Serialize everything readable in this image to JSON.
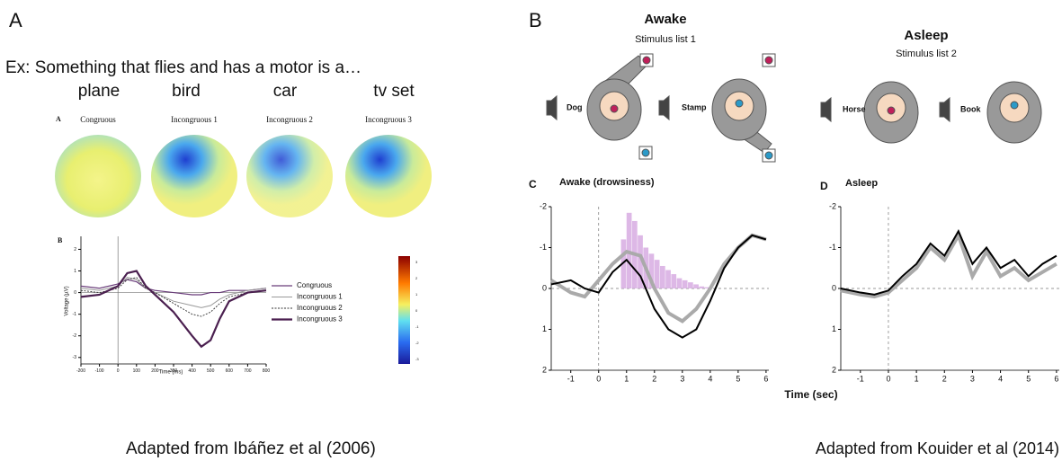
{
  "panel_a": {
    "label": "A",
    "example": "Ex:  Something that flies and has a motor is a…",
    "words": [
      "plane",
      "bird",
      "car",
      "tv set"
    ],
    "figure_label": "A",
    "maps": [
      "Congruous",
      "Incongruous 1",
      "Incongruous 2",
      "Incongruous 3"
    ],
    "erp_chart": {
      "type": "line",
      "label": "B",
      "xlabel": "Time (ms)",
      "ylabel": "Voltage (µV)",
      "x": [
        -200,
        -100,
        0,
        50,
        100,
        150,
        200,
        300,
        400,
        450,
        500,
        550,
        600,
        700,
        800
      ],
      "series": [
        {
          "name": "Congruous",
          "color": "#6a3d7a",
          "values": [
            0.3,
            0.2,
            0.4,
            0.6,
            0.5,
            0.2,
            0.1,
            0,
            -0.1,
            -0.1,
            0,
            0,
            0.1,
            0.1,
            0.2
          ]
        },
        {
          "name": "Incongruous 1",
          "color": "#999999",
          "values": [
            0.2,
            0.1,
            0.3,
            0.7,
            0.6,
            0.2,
            0,
            -0.4,
            -0.6,
            -0.7,
            -0.6,
            -0.3,
            -0.1,
            0.1,
            0.2
          ]
        },
        {
          "name": "Incongruous 2",
          "color": "#333333",
          "values": [
            0.1,
            0,
            0.2,
            0.6,
            0.7,
            0.2,
            0,
            -0.5,
            -1.0,
            -1.1,
            -0.9,
            -0.5,
            -0.2,
            0,
            0.1
          ]
        },
        {
          "name": "Incongruous 3",
          "color": "#4a1f4f",
          "values": [
            -0.2,
            -0.1,
            0.3,
            0.9,
            1.0,
            0.3,
            -0.1,
            -0.9,
            -2.0,
            -2.5,
            -2.2,
            -1.2,
            -0.4,
            0,
            0.1
          ]
        }
      ],
      "xlim": [
        -200,
        800
      ],
      "xticks": [
        -200,
        -100,
        0,
        100,
        200,
        300,
        400,
        500,
        600,
        700,
        800
      ],
      "ylim": [
        -3.3,
        2.6
      ],
      "yticks": [
        -3,
        -2,
        -1,
        0,
        1,
        2
      ]
    },
    "colorbar_ticks": [
      3,
      2,
      1,
      0,
      -1,
      -2,
      -3
    ],
    "credit": "Adapted from Ibáñez et al (2006)"
  },
  "panel_b": {
    "label": "B",
    "awake": {
      "title": "Awake",
      "subtitle": "Stimulus list 1",
      "stimuli": [
        "Dog",
        "Stamp"
      ]
    },
    "asleep": {
      "title": "Asleep",
      "subtitle": "Stimulus list 2",
      "stimuli": [
        "Horse",
        "Book"
      ]
    },
    "chart_c": {
      "type": "line",
      "label": "C",
      "title": "Awake (drowsiness)",
      "y_inverted": true,
      "x": [
        -1.7,
        -1,
        -0.5,
        0,
        0.5,
        1,
        1.5,
        2,
        2.5,
        3,
        3.5,
        4,
        4.5,
        5,
        5.5,
        6
      ],
      "series": [
        {
          "color": "#aaaaaa",
          "values": [
            -0.2,
            0.1,
            0.2,
            -0.2,
            -0.6,
            -0.9,
            -0.8,
            0,
            0.6,
            0.8,
            0.5,
            0,
            -0.6,
            -1.0,
            -1.3,
            -1.2
          ]
        },
        {
          "color": "#000000",
          "values": [
            -0.1,
            -0.2,
            0,
            0.1,
            -0.4,
            -0.7,
            -0.3,
            0.5,
            1.0,
            1.2,
            1.0,
            0.3,
            -0.5,
            -1.0,
            -1.3,
            -1.2
          ]
        }
      ],
      "hist": {
        "color": "#d4a6e0",
        "bins": [
          0.8,
          1.0,
          1.2,
          1.4,
          1.6,
          1.8,
          2.0,
          2.2,
          2.4,
          2.6,
          2.8,
          3.0,
          3.2,
          3.4,
          3.6,
          3.8,
          4.0
        ],
        "values": [
          -1.2,
          -1.85,
          -1.65,
          -1.3,
          -1.0,
          -0.85,
          -0.7,
          -0.55,
          -0.45,
          -0.35,
          -0.25,
          -0.2,
          -0.15,
          -0.1,
          -0.05,
          -0.03
        ]
      },
      "xlim": [
        -1.7,
        6.1
      ],
      "xticks": [
        -1,
        0,
        1,
        2,
        3,
        4,
        5,
        6
      ],
      "ylim": [
        -2,
        2
      ],
      "yticks": [
        -2,
        -1,
        0,
        1,
        2
      ]
    },
    "chart_d": {
      "type": "line",
      "label": "D",
      "title": "Asleep",
      "y_inverted": true,
      "x": [
        -1.7,
        -1,
        -0.5,
        0,
        0.5,
        1,
        1.5,
        2,
        2.5,
        3,
        3.5,
        4,
        4.5,
        5,
        5.5,
        6
      ],
      "series": [
        {
          "color": "#aaaaaa",
          "values": [
            0.05,
            0.15,
            0.2,
            0.1,
            -0.2,
            -0.5,
            -1.0,
            -0.7,
            -1.3,
            -0.3,
            -0.9,
            -0.3,
            -0.5,
            -0.2,
            -0.4,
            -0.6
          ]
        },
        {
          "color": "#000000",
          "values": [
            0,
            0.1,
            0.15,
            0.05,
            -0.3,
            -0.6,
            -1.1,
            -0.8,
            -1.4,
            -0.6,
            -1.0,
            -0.5,
            -0.7,
            -0.3,
            -0.6,
            -0.8
          ]
        }
      ],
      "xlim": [
        -1.7,
        6.1
      ],
      "xticks": [
        -1,
        0,
        1,
        2,
        3,
        4,
        5,
        6
      ],
      "ylim": [
        -2,
        2
      ],
      "yticks": [
        -2,
        -1,
        0,
        1,
        2
      ]
    },
    "xlabel": "Time (sec)",
    "credit": "Adapted from Kouider et al (2014)"
  }
}
